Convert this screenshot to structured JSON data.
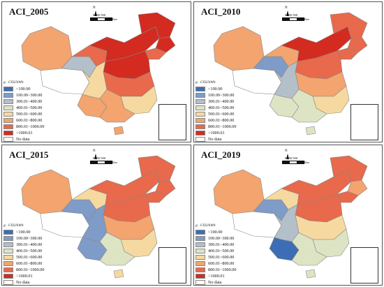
{
  "unit_label": "g · CO2/kWh",
  "north_label": "N",
  "scale_text": "0  250  500",
  "scale_unit": "Km",
  "legend": [
    {
      "label": "<100.00",
      "color": "#3d6eb5"
    },
    {
      "label": "100.00~300.00",
      "color": "#7f9bc7"
    },
    {
      "label": "300.01~400.00",
      "color": "#b3bfc9"
    },
    {
      "label": "400.01~500.00",
      "color": "#dde4c4"
    },
    {
      "label": "500.01~600.00",
      "color": "#f6d9a0"
    },
    {
      "label": "600.01~800.00",
      "color": "#f3a46f"
    },
    {
      "label": "800.01~1000.00",
      "color": "#e8694b"
    },
    {
      "label": ">1000.01",
      "color": "#d42b20"
    },
    {
      "label": "No data",
      "color": "#ffffff"
    }
  ],
  "panels": [
    {
      "title": "ACI_2005",
      "regions": {
        "xinjiang": 5,
        "tibet": 8,
        "qinghai": 2,
        "gansu": 6,
        "neimenggu": 7,
        "heilongjiang": 7,
        "jilin": 7,
        "liaoning": 6,
        "north_china": 7,
        "central": 6,
        "sichuan": 4,
        "southwest": 5,
        "southeast": 4,
        "south": 5,
        "hainan": 5,
        "taiwan": 8
      }
    },
    {
      "title": "ACI_2010",
      "regions": {
        "xinjiang": 5,
        "tibet": 8,
        "qinghai": 1,
        "gansu": 5,
        "neimenggu": 7,
        "heilongjiang": 6,
        "jilin": 6,
        "liaoning": 6,
        "north_china": 6,
        "central": 5,
        "sichuan": 2,
        "southwest": 3,
        "southeast": 4,
        "south": 3,
        "hainan": 3,
        "taiwan": 8
      }
    },
    {
      "title": "ACI_2015",
      "regions": {
        "xinjiang": 5,
        "tibet": 8,
        "qinghai": 1,
        "gansu": 4,
        "neimenggu": 6,
        "heilongjiang": 6,
        "jilin": 6,
        "liaoning": 6,
        "north_china": 6,
        "central": 5,
        "sichuan": 1,
        "southwest": 1,
        "southeast": 4,
        "south": 3,
        "hainan": 4,
        "taiwan": 8
      }
    },
    {
      "title": "ACI_2019",
      "regions": {
        "xinjiang": 5,
        "tibet": 8,
        "qinghai": 1,
        "gansu": 4,
        "neimenggu": 6,
        "heilongjiang": 6,
        "jilin": 5,
        "liaoning": 6,
        "north_china": 6,
        "central": 4,
        "sichuan": 2,
        "southwest": 0,
        "southeast": 3,
        "south": 3,
        "hainan": 3,
        "taiwan": 8
      }
    }
  ]
}
